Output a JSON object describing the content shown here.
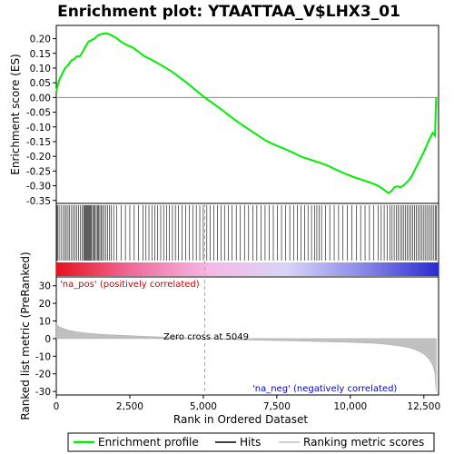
{
  "chart_data": {
    "type": "line",
    "title": "Enrichment plot: YTAATTAA_V$LHX3_01",
    "panels": [
      {
        "name": "enrichment",
        "ylabel": "Enrichment score (ES)",
        "ylim": [
          -0.36,
          0.245
        ],
        "yticks": [
          0.2,
          0.15,
          0.1,
          0.05,
          0.0,
          -0.05,
          -0.1,
          -0.15,
          -0.2,
          -0.25,
          -0.3,
          -0.35
        ],
        "ytick_labels": [
          "0.20",
          "0.15",
          "0.10",
          "0.05",
          "0.00",
          "-0.05",
          "-0.10",
          "-0.15",
          "-0.20",
          "-0.25",
          "-0.30",
          "-0.35"
        ],
        "series": [
          {
            "name": "Enrichment profile",
            "color": "#00ee00",
            "x": [
              0,
              60,
              120,
              200,
              300,
              400,
              500,
              600,
              700,
              800,
              900,
              1000,
              1100,
              1200,
              1300,
              1400,
              1500,
              1600,
              1700,
              1800,
              1900,
              2000,
              2200,
              2400,
              2600,
              2800,
              3000,
              3300,
              3600,
              3900,
              4200,
              4500,
              4800,
              5049,
              5300,
              5600,
              5900,
              6200,
              6500,
              6800,
              7100,
              7400,
              7700,
              8000,
              8300,
              8600,
              8900,
              9200,
              9500,
              9800,
              10100,
              10400,
              10700,
              10900,
              11100,
              11200,
              11300,
              11400,
              11500,
              11600,
              11700,
              11800,
              11900,
              12000,
              12100,
              12200,
              12300,
              12400,
              12500,
              12600,
              12700,
              12800,
              12880,
              12900,
              12920
            ],
            "y": [
              0.02,
              0.045,
              0.065,
              0.08,
              0.1,
              0.11,
              0.125,
              0.13,
              0.14,
              0.14,
              0.155,
              0.175,
              0.19,
              0.195,
              0.2,
              0.21,
              0.215,
              0.217,
              0.218,
              0.215,
              0.21,
              0.205,
              0.19,
              0.178,
              0.17,
              0.155,
              0.14,
              0.125,
              0.108,
              0.09,
              0.068,
              0.045,
              0.02,
              0.0,
              -0.018,
              -0.04,
              -0.063,
              -0.085,
              -0.105,
              -0.125,
              -0.145,
              -0.16,
              -0.172,
              -0.185,
              -0.2,
              -0.21,
              -0.22,
              -0.23,
              -0.245,
              -0.258,
              -0.27,
              -0.28,
              -0.29,
              -0.298,
              -0.31,
              -0.318,
              -0.325,
              -0.318,
              -0.305,
              -0.302,
              -0.305,
              -0.3,
              -0.29,
              -0.28,
              -0.265,
              -0.245,
              -0.225,
              -0.205,
              -0.185,
              -0.162,
              -0.14,
              -0.12,
              -0.13,
              -0.05,
              0.0
            ]
          }
        ]
      },
      {
        "name": "hits",
        "hit_color": "#000000",
        "hit_positions": [
          15,
          48,
          95,
          160,
          230,
          300,
          340,
          400,
          455,
          520,
          580,
          640,
          700,
          760,
          820,
          880,
          930,
          960,
          990,
          1020,
          1050,
          1080,
          1110,
          1140,
          1170,
          1200,
          1240,
          1280,
          1320,
          1360,
          1400,
          1440,
          1480,
          1520,
          1570,
          1620,
          1680,
          1740,
          1800,
          1870,
          1950,
          2050,
          2200,
          2350,
          2500,
          2650,
          2800,
          2950,
          3050,
          3150,
          3250,
          3350,
          3450,
          3550,
          3650,
          3750,
          3850,
          3950,
          4050,
          4150,
          4280,
          4400,
          4520,
          4640,
          4760,
          4880,
          5000,
          5120,
          5240,
          5360,
          5480,
          5600,
          5720,
          5850,
          5980,
          6120,
          6260,
          6400,
          6540,
          6680,
          6820,
          6960,
          7100,
          7240,
          7380,
          7520,
          7660,
          7800,
          7940,
          8080,
          8200,
          8320,
          8440,
          8560,
          8680,
          8780,
          8860,
          8940,
          9020,
          9150,
          9300,
          9450,
          9600,
          9750,
          9900,
          10050,
          10200,
          10350,
          10500,
          10650,
          10800,
          10950,
          11050,
          11150,
          11250,
          11350,
          11420,
          11490,
          11560,
          11630,
          11700,
          11760,
          11820,
          11880,
          11940,
          12000,
          12060,
          12120,
          12180,
          12240,
          12300,
          12360,
          12420,
          12480,
          12540,
          12600,
          12660,
          12720,
          12780,
          12840,
          12900,
          12920
        ],
        "bar_gradient": [
          "#e8121e",
          "#f06c9c",
          "#f6b8e6",
          "#d9d4f8",
          "#8a8ae8",
          "#2a2ad2"
        ]
      },
      {
        "name": "ranked-metric",
        "ylabel": "Ranked list metric (PreRanked)",
        "ylim": [
          -32,
          35
        ],
        "yticks": [
          30,
          20,
          10,
          0,
          -10,
          -20,
          -30
        ],
        "ytick_labels": [
          "30",
          "20",
          "10",
          "0",
          "-10",
          "-20",
          "-30"
        ],
        "series": [
          {
            "name": "Ranking metric scores",
            "color": "#c0c0c0",
            "x": [
              0,
              30,
              100,
              200,
              400,
              700,
              1000,
              1500,
              2000,
              3000,
              4000,
              5049,
              6000,
              7000,
              8000,
              9000,
              10000,
              10800,
              11300,
              11700,
              12000,
              12200,
              12400,
              12550,
              12650,
              12750,
              12820,
              12880,
              12900,
              12920
            ],
            "y": [
              9.0,
              7.8,
              6.8,
              6.0,
              4.8,
              3.8,
              3.2,
              2.5,
              2.0,
              1.3,
              0.6,
              0.0,
              -0.5,
              -0.9,
              -1.3,
              -1.7,
              -2.1,
              -2.7,
              -3.4,
              -4.2,
              -5.2,
              -6.3,
              -7.8,
              -9.5,
              -11.2,
              -13.5,
              -16.0,
              -20.0,
              -26.0,
              -30.0
            ]
          }
        ],
        "zero_cross_label": "Zero cross at 5049",
        "zero_cross_x": 5049,
        "pos_label": "'na_pos' (positively correlated)",
        "neg_label": "'na_neg' (negatively correlated)"
      }
    ],
    "xlabel": "Rank in Ordered Dataset",
    "xlim": [
      0,
      13000
    ],
    "xticks": [
      0,
      2500,
      5000,
      7500,
      10000,
      12500
    ],
    "xtick_labels": [
      "0",
      "2,500",
      "5,000",
      "7,500",
      "10,000",
      "12,500"
    ],
    "legend": {
      "placement": "bottom",
      "items": [
        {
          "label": "Enrichment profile",
          "color": "#00ee00"
        },
        {
          "label": "Hits",
          "color": "#000000"
        },
        {
          "label": "Ranking metric scores",
          "color": "#c0c0c0"
        }
      ]
    },
    "colors": {
      "pos_label": "#cc0000",
      "neg_label": "#0000cc",
      "zero_line": "#999999"
    }
  }
}
